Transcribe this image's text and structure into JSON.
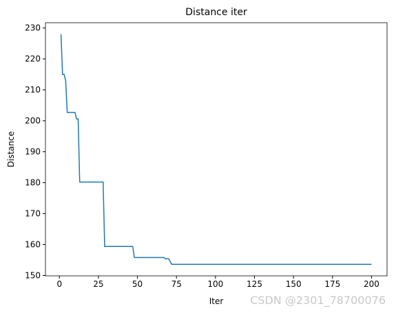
{
  "chart_data": {
    "type": "line",
    "title": "Distance iter",
    "x_label": "Iter",
    "y_label": "Distance",
    "watermark": "CSDN @2301_78700076",
    "x": [
      1,
      2,
      3,
      4,
      5,
      10,
      11,
      12,
      13,
      28,
      29,
      47,
      48,
      67,
      68,
      70,
      72,
      200
    ],
    "series": [
      {
        "name": "Distance",
        "color": "#1f77b4",
        "values": [
          228,
          215,
          215,
          213,
          202.7,
          202.7,
          200.6,
          200.6,
          180.2,
          180.2,
          159.4,
          159.4,
          155.8,
          155.8,
          155.4,
          155.4,
          153.6,
          153.6
        ]
      }
    ],
    "xlim": [
      -8.95,
      209.95
    ],
    "xticks": [
      0,
      25,
      50,
      75,
      100,
      125,
      150,
      175,
      200
    ],
    "ylim": [
      149.88,
      231.72
    ],
    "yticks": [
      150,
      160,
      170,
      180,
      190,
      200,
      210,
      220,
      230
    ]
  }
}
